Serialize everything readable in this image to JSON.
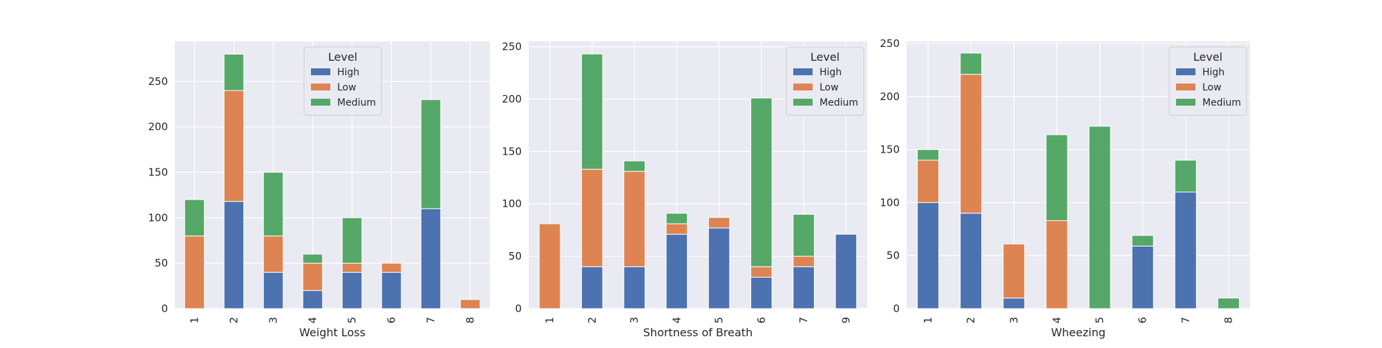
{
  "colors": {
    "High": "#4c72b0",
    "Low": "#dd8452",
    "Medium": "#55a868",
    "panel_bg": "#eaeaf2",
    "grid": "#ffffff"
  },
  "legend_title": "Level",
  "chart_data": [
    {
      "type": "bar",
      "stacked": true,
      "xlabel": "Weight Loss",
      "ylabel": "",
      "categories": [
        "1",
        "2",
        "3",
        "4",
        "5",
        "6",
        "7",
        "8"
      ],
      "yticks": [
        0,
        50,
        100,
        150,
        200,
        250
      ],
      "ylim": [
        0,
        294
      ],
      "legend_position": "top-center",
      "series": [
        {
          "name": "High",
          "values": [
            0,
            118,
            40,
            20,
            40,
            40,
            110,
            0
          ]
        },
        {
          "name": "Low",
          "values": [
            80,
            122,
            40,
            30,
            10,
            10,
            0,
            10
          ]
        },
        {
          "name": "Medium",
          "values": [
            40,
            40,
            70,
            10,
            50,
            0,
            120,
            0
          ]
        }
      ]
    },
    {
      "type": "bar",
      "stacked": true,
      "xlabel": "Shortness of Breath",
      "ylabel": "",
      "categories": [
        "1",
        "2",
        "3",
        "4",
        "5",
        "6",
        "7",
        "9"
      ],
      "yticks": [
        0,
        50,
        100,
        150,
        200,
        250
      ],
      "ylim": [
        0,
        255
      ],
      "legend_position": "top-right",
      "series": [
        {
          "name": "High",
          "values": [
            0,
            40,
            40,
            71,
            77,
            30,
            40,
            71
          ]
        },
        {
          "name": "Low",
          "values": [
            81,
            93,
            91,
            10,
            10,
            10,
            10,
            0
          ]
        },
        {
          "name": "Medium",
          "values": [
            0,
            110,
            10,
            10,
            0,
            161,
            40,
            0
          ]
        }
      ]
    },
    {
      "type": "bar",
      "stacked": true,
      "xlabel": "Wheezing",
      "ylabel": "",
      "categories": [
        "1",
        "2",
        "3",
        "4",
        "5",
        "6",
        "7",
        "8"
      ],
      "yticks": [
        0,
        50,
        100,
        150,
        200,
        250
      ],
      "ylim": [
        0,
        252
      ],
      "legend_position": "top-right",
      "series": [
        {
          "name": "High",
          "values": [
            100,
            90,
            10,
            0,
            0,
            59,
            110,
            0
          ]
        },
        {
          "name": "Low",
          "values": [
            40,
            131,
            51,
            83,
            0,
            0,
            0,
            0
          ]
        },
        {
          "name": "Medium",
          "values": [
            10,
            20,
            0,
            81,
            172,
            10,
            30,
            10
          ]
        }
      ]
    }
  ]
}
